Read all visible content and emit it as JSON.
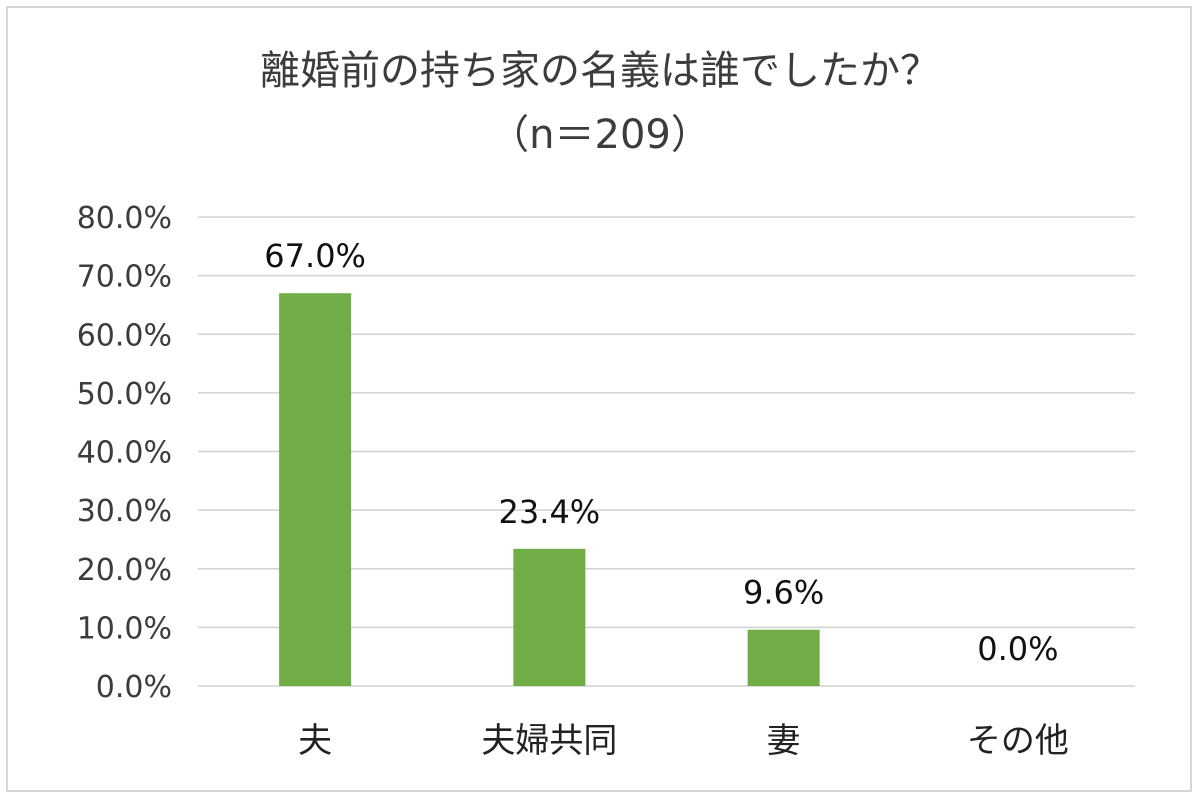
{
  "chart_data": {
    "type": "bar",
    "title": "離婚前の持ち家の名義は誰でしたか？",
    "subtitle": "（n＝209）",
    "categories": [
      "夫",
      "夫婦共同",
      "妻",
      "その他"
    ],
    "values": [
      67.0,
      23.4,
      9.6,
      0.0
    ],
    "data_labels": [
      "67.0%",
      "23.4%",
      "9.6%",
      "0.0%"
    ],
    "ylim": [
      0,
      80
    ],
    "yticks": [
      0,
      10,
      20,
      30,
      40,
      50,
      60,
      70,
      80
    ],
    "ytick_labels": [
      "0.0%",
      "10.0%",
      "20.0%",
      "30.0%",
      "40.0%",
      "50.0%",
      "60.0%",
      "70.0%",
      "80.0%"
    ],
    "xlabel": "",
    "ylabel": "",
    "grid": true,
    "bar_color": "#70ad47"
  }
}
